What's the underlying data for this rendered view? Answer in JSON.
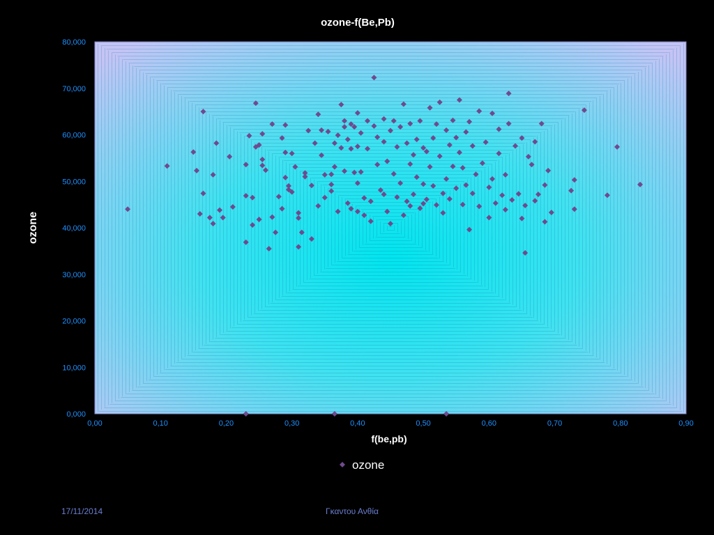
{
  "chart_data": {
    "type": "scatter",
    "title": "ozone-f(Be,Pb)",
    "xlabel": "f(be,pb)",
    "ylabel": "ozone",
    "xlim": [
      0.0,
      0.9
    ],
    "ylim": [
      0,
      80
    ],
    "x_ticks": [
      "0,00",
      "0,10",
      "0,20",
      "0,30",
      "0,40",
      "0,50",
      "0,60",
      "0,70",
      "0,80",
      "0,90"
    ],
    "y_ticks": [
      "0,000",
      "10,000",
      "20,000",
      "30,000",
      "40,000",
      "50,000",
      "60,000",
      "70,000",
      "80,000"
    ],
    "legend": {
      "label": "ozone",
      "position": "bottom"
    },
    "grid": false,
    "colors": {
      "marker": "#6f4a8e",
      "plot_center": "#00e5ee",
      "plot_edge": "#c4c4f4",
      "tick_text": "#1e90ff"
    },
    "series": [
      {
        "name": "ozone",
        "points": [
          [
            0.05,
            44.0
          ],
          [
            0.11,
            53.3
          ],
          [
            0.15,
            56.3
          ],
          [
            0.155,
            52.3
          ],
          [
            0.16,
            43.0
          ],
          [
            0.165,
            65.0
          ],
          [
            0.165,
            47.4
          ],
          [
            0.175,
            42.2
          ],
          [
            0.18,
            51.4
          ],
          [
            0.18,
            40.9
          ],
          [
            0.185,
            58.2
          ],
          [
            0.19,
            43.8
          ],
          [
            0.195,
            42.2
          ],
          [
            0.205,
            55.3
          ],
          [
            0.21,
            44.5
          ],
          [
            0.23,
            36.9
          ],
          [
            0.23,
            46.9
          ],
          [
            0.23,
            53.6
          ],
          [
            0.235,
            59.8
          ],
          [
            0.24,
            46.5
          ],
          [
            0.24,
            40.6
          ],
          [
            0.245,
            57.4
          ],
          [
            0.245,
            66.8
          ],
          [
            0.25,
            41.8
          ],
          [
            0.25,
            57.8
          ],
          [
            0.255,
            60.2
          ],
          [
            0.255,
            54.7
          ],
          [
            0.255,
            53.4
          ],
          [
            0.26,
            52.4
          ],
          [
            0.265,
            35.5
          ],
          [
            0.27,
            62.3
          ],
          [
            0.27,
            42.3
          ],
          [
            0.275,
            39.0
          ],
          [
            0.28,
            46.7
          ],
          [
            0.285,
            59.3
          ],
          [
            0.285,
            44.1
          ],
          [
            0.29,
            62.1
          ],
          [
            0.29,
            56.2
          ],
          [
            0.29,
            50.8
          ],
          [
            0.295,
            49.0
          ],
          [
            0.295,
            48.2
          ],
          [
            0.3,
            47.7
          ],
          [
            0.3,
            56.0
          ],
          [
            0.305,
            53.1
          ],
          [
            0.31,
            42.1
          ],
          [
            0.31,
            43.2
          ],
          [
            0.31,
            35.9
          ],
          [
            0.315,
            39.0
          ],
          [
            0.32,
            51.8
          ],
          [
            0.32,
            51.0
          ],
          [
            0.325,
            60.9
          ],
          [
            0.33,
            49.1
          ],
          [
            0.33,
            37.6
          ],
          [
            0.335,
            58.2
          ],
          [
            0.34,
            64.4
          ],
          [
            0.34,
            44.7
          ],
          [
            0.345,
            61.0
          ],
          [
            0.345,
            55.6
          ],
          [
            0.35,
            51.4
          ],
          [
            0.35,
            46.5
          ],
          [
            0.355,
            60.7
          ],
          [
            0.36,
            49.3
          ],
          [
            0.36,
            47.9
          ],
          [
            0.36,
            51.5
          ],
          [
            0.365,
            58.2
          ],
          [
            0.365,
            53.1
          ],
          [
            0.37,
            59.9
          ],
          [
            0.37,
            43.5
          ],
          [
            0.375,
            66.5
          ],
          [
            0.375,
            57.2
          ],
          [
            0.38,
            61.7
          ],
          [
            0.38,
            63.0
          ],
          [
            0.38,
            52.2
          ],
          [
            0.385,
            59.0
          ],
          [
            0.385,
            45.3
          ],
          [
            0.39,
            62.3
          ],
          [
            0.39,
            57.0
          ],
          [
            0.39,
            44.1
          ],
          [
            0.395,
            61.7
          ],
          [
            0.395,
            51.9
          ],
          [
            0.4,
            64.7
          ],
          [
            0.4,
            57.5
          ],
          [
            0.4,
            49.6
          ],
          [
            0.4,
            43.5
          ],
          [
            0.405,
            60.4
          ],
          [
            0.405,
            52.0
          ],
          [
            0.41,
            46.4
          ],
          [
            0.41,
            42.7
          ],
          [
            0.415,
            63.0
          ],
          [
            0.415,
            57.0
          ],
          [
            0.42,
            45.7
          ],
          [
            0.42,
            41.4
          ],
          [
            0.425,
            72.3
          ],
          [
            0.425,
            61.9
          ],
          [
            0.43,
            59.5
          ],
          [
            0.43,
            53.6
          ],
          [
            0.435,
            48.1
          ],
          [
            0.44,
            63.4
          ],
          [
            0.44,
            58.5
          ],
          [
            0.44,
            47.2
          ],
          [
            0.445,
            54.3
          ],
          [
            0.445,
            43.5
          ],
          [
            0.45,
            60.9
          ],
          [
            0.45,
            40.9
          ],
          [
            0.455,
            63.0
          ],
          [
            0.455,
            51.6
          ],
          [
            0.46,
            57.4
          ],
          [
            0.46,
            46.6
          ],
          [
            0.465,
            61.7
          ],
          [
            0.465,
            49.6
          ],
          [
            0.47,
            42.7
          ],
          [
            0.47,
            66.6
          ],
          [
            0.475,
            58.2
          ],
          [
            0.475,
            45.7
          ],
          [
            0.48,
            62.4
          ],
          [
            0.48,
            53.7
          ],
          [
            0.48,
            44.7
          ],
          [
            0.485,
            55.7
          ],
          [
            0.485,
            47.2
          ],
          [
            0.49,
            59.0
          ],
          [
            0.49,
            50.9
          ],
          [
            0.495,
            63.0
          ],
          [
            0.495,
            44.2
          ],
          [
            0.5,
            57.2
          ],
          [
            0.5,
            49.4
          ],
          [
            0.5,
            45.2
          ],
          [
            0.505,
            56.4
          ],
          [
            0.505,
            46.1
          ],
          [
            0.51,
            65.8
          ],
          [
            0.51,
            53.1
          ],
          [
            0.515,
            59.3
          ],
          [
            0.515,
            49.0
          ],
          [
            0.52,
            62.3
          ],
          [
            0.52,
            44.9
          ],
          [
            0.525,
            67.0
          ],
          [
            0.525,
            55.4
          ],
          [
            0.53,
            47.4
          ],
          [
            0.53,
            43.2
          ],
          [
            0.535,
            61.0
          ],
          [
            0.535,
            50.5
          ],
          [
            0.54,
            57.8
          ],
          [
            0.54,
            46.2
          ],
          [
            0.545,
            63.1
          ],
          [
            0.545,
            53.2
          ],
          [
            0.55,
            59.4
          ],
          [
            0.55,
            48.5
          ],
          [
            0.555,
            67.5
          ],
          [
            0.555,
            56.2
          ],
          [
            0.56,
            52.9
          ],
          [
            0.56,
            45.0
          ],
          [
            0.565,
            60.6
          ],
          [
            0.565,
            49.2
          ],
          [
            0.57,
            62.8
          ],
          [
            0.57,
            39.6
          ],
          [
            0.575,
            47.4
          ],
          [
            0.575,
            57.6
          ],
          [
            0.58,
            51.5
          ],
          [
            0.585,
            65.1
          ],
          [
            0.585,
            44.6
          ],
          [
            0.59,
            53.9
          ],
          [
            0.595,
            58.4
          ],
          [
            0.6,
            48.7
          ],
          [
            0.6,
            42.2
          ],
          [
            0.605,
            64.6
          ],
          [
            0.605,
            50.5
          ],
          [
            0.61,
            45.3
          ],
          [
            0.615,
            56.0
          ],
          [
            0.615,
            61.2
          ],
          [
            0.62,
            47.0
          ],
          [
            0.625,
            51.4
          ],
          [
            0.625,
            43.9
          ],
          [
            0.63,
            68.9
          ],
          [
            0.63,
            62.4
          ],
          [
            0.635,
            46.0
          ],
          [
            0.64,
            57.6
          ],
          [
            0.645,
            47.3
          ],
          [
            0.65,
            59.3
          ],
          [
            0.65,
            42.0
          ],
          [
            0.655,
            34.6
          ],
          [
            0.655,
            44.8
          ],
          [
            0.66,
            55.3
          ],
          [
            0.665,
            53.6
          ],
          [
            0.67,
            58.5
          ],
          [
            0.67,
            45.8
          ],
          [
            0.675,
            47.2
          ],
          [
            0.68,
            62.4
          ],
          [
            0.685,
            49.2
          ],
          [
            0.685,
            41.3
          ],
          [
            0.69,
            52.3
          ],
          [
            0.695,
            43.3
          ],
          [
            0.725,
            48.0
          ],
          [
            0.73,
            50.3
          ],
          [
            0.73,
            44.0
          ],
          [
            0.745,
            65.3
          ],
          [
            0.78,
            47.0
          ],
          [
            0.795,
            57.4
          ],
          [
            0.83,
            49.3
          ],
          [
            0.23,
            0.0
          ],
          [
            0.365,
            0.0
          ],
          [
            0.535,
            0.0
          ]
        ]
      }
    ]
  },
  "footer": {
    "date": "17/11/2014",
    "author": "Γκαντου Ανθία"
  }
}
